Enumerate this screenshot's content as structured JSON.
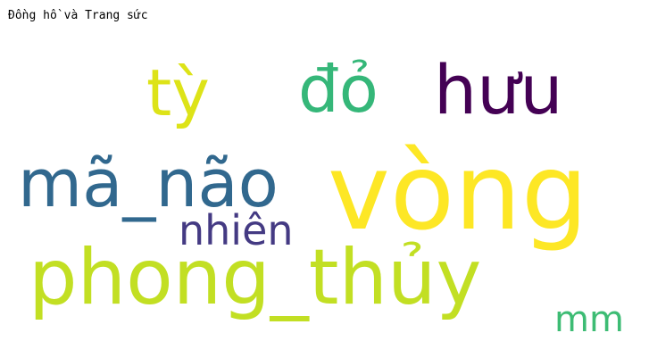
{
  "page": {
    "title": "Đồng hồ và Trang sức"
  },
  "wordcloud": {
    "words": [
      {
        "text": "tỳ",
        "color": "#dde318"
      },
      {
        "text": "đỏ",
        "color": "#35b779"
      },
      {
        "text": "hưu",
        "color": "#440154"
      },
      {
        "text": "mã_não",
        "color": "#31688e"
      },
      {
        "text": "vòng",
        "color": "#fde725"
      },
      {
        "text": "nhiên",
        "color": "#443a83"
      },
      {
        "text": "phong_thủy",
        "color": "#c2df23"
      },
      {
        "text": "mm",
        "color": "#3dbc74"
      }
    ]
  }
}
